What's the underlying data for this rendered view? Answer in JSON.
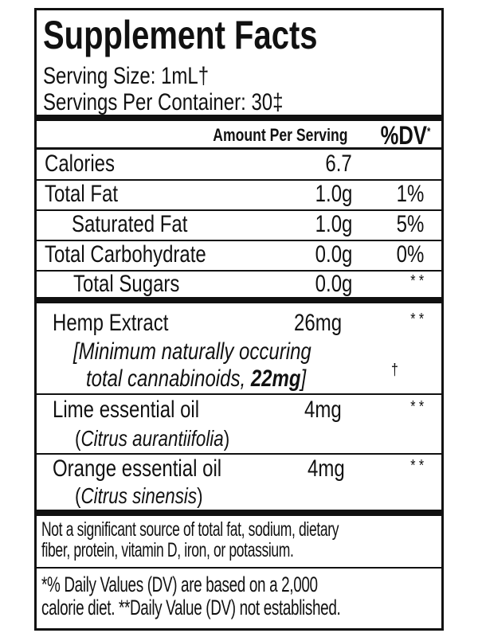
{
  "title": "Supplement Facts",
  "serving_size": "Serving Size: 1mL†",
  "servings_per_container": "Servings Per Container: 30‡",
  "header": {
    "amount": "Amount Per Serving",
    "dv": "%DV",
    "dv_mark": "*"
  },
  "nutrients": [
    {
      "name": "Calories",
      "amount": "6.7",
      "dv": ""
    },
    {
      "name": "Total Fat",
      "amount": "1.0g",
      "dv": "1%"
    },
    {
      "name": "Saturated Fat",
      "amount": "1.0g",
      "dv": "5%"
    },
    {
      "name": "Total Carbohydrate",
      "amount": "0.0g",
      "dv": "0%"
    },
    {
      "name": "Total Sugars",
      "amount": "0.0g",
      "dv": "* *"
    }
  ],
  "ingredients": [
    {
      "name": "Hemp Extract",
      "amount": "26mg",
      "dv": "* *",
      "note1": "[Minimum naturally occuring",
      "note2": "total cannabinoids, ",
      "note2_bold": "22mg",
      "note2_end": "]",
      "note_mark": "†"
    },
    {
      "name": "Lime essential oil",
      "amount": "4mg",
      "dv": "* *",
      "latin": "Citrus aurantiifolia"
    },
    {
      "name": "Orange essential oil",
      "amount": "4mg",
      "dv": "* *",
      "latin": "Citrus sinensis"
    }
  ],
  "footnote1": [
    "Not a significant source of total fat, sodium, dietary",
    "fiber, protein, vitamin D, iron, or potassium."
  ],
  "footnote2": [
    "*% Daily Values (DV) are based on a 2,000",
    "calorie diet. **Daily Value (DV) not established."
  ]
}
